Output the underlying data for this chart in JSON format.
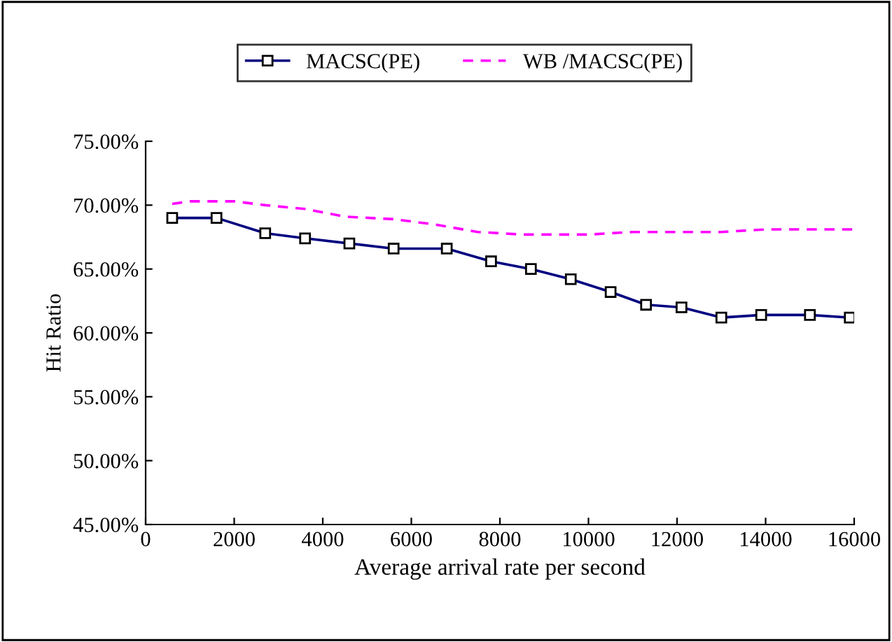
{
  "chart_data": {
    "type": "line",
    "xlabel": "Average arrival rate per second",
    "ylabel": "Hit Ratio",
    "series": [
      {
        "name": "MACSC(PE)",
        "color": "#000080",
        "marker": "square",
        "line_style": "solid",
        "x": [
          600,
          1600,
          2700,
          3600,
          4600,
          5600,
          6800,
          7800,
          8700,
          9600,
          10500,
          11300,
          12100,
          13000,
          13900,
          15000,
          15900
        ],
        "values": [
          69.0,
          69.0,
          67.8,
          67.4,
          67.0,
          66.6,
          66.6,
          65.6,
          65.0,
          64.2,
          63.2,
          62.2,
          62.0,
          61.2,
          61.4,
          61.4,
          61.2
        ]
      },
      {
        "name": "WB /MACSC(PE)",
        "color": "#ff00ff",
        "marker": "none",
        "line_style": "dashed",
        "x": [
          600,
          1000,
          2000,
          2700,
          3600,
          4500,
          5600,
          6500,
          7500,
          8500,
          10000,
          11000,
          13000,
          14000,
          16000
        ],
        "values": [
          70.1,
          70.3,
          70.3,
          70.0,
          69.7,
          69.1,
          68.9,
          68.5,
          67.9,
          67.7,
          67.7,
          67.9,
          67.9,
          68.1,
          68.1
        ]
      }
    ],
    "xlim": [
      0,
      16000
    ],
    "xticks": [
      0,
      2000,
      4000,
      6000,
      8000,
      10000,
      12000,
      14000,
      16000
    ],
    "ylim": [
      45,
      75
    ],
    "yticks": [
      {
        "value": 45,
        "label": "45.00%"
      },
      {
        "value": 50,
        "label": "50.00%"
      },
      {
        "value": 55,
        "label": "55.00%"
      },
      {
        "value": 60,
        "label": "60.00%"
      },
      {
        "value": 65,
        "label": "65.00%"
      },
      {
        "value": 70,
        "label": "70.00%"
      },
      {
        "value": 75,
        "label": "75.00%"
      }
    ],
    "grid": false,
    "legend": "top"
  }
}
